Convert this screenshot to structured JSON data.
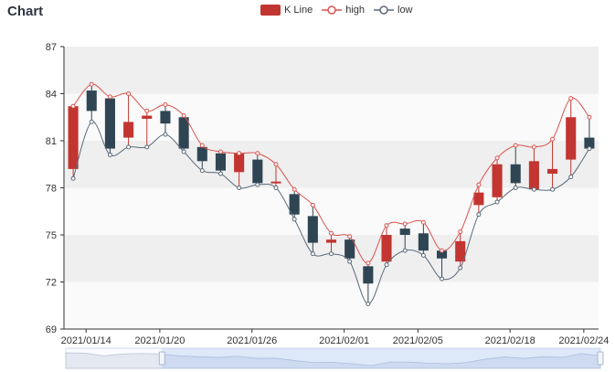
{
  "chart_data": {
    "type": "candlestick",
    "title": "Chart",
    "legend": {
      "placement": "top-center",
      "items": [
        {
          "name": "K Line",
          "color": "#c23531",
          "icon": "rect"
        },
        {
          "name": "high",
          "color": "#d9534f",
          "icon": "circle-line"
        },
        {
          "name": "low",
          "color": "#5b6a7a",
          "icon": "circle-line"
        }
      ]
    },
    "ylim": [
      69,
      87
    ],
    "y_ticks": [
      "69",
      "72",
      "75",
      "78",
      "81",
      "84",
      "87"
    ],
    "x_tick_labels": [
      "2021/01/14",
      "2021/01/20",
      "2021/01/26",
      "2021/02/01",
      "2021/02/05",
      "2021/02/18",
      "2021/02/24"
    ],
    "grid": "horizontal-bands",
    "colors": {
      "up": "#c23531",
      "down": "#2f4554",
      "high_line": "#d9534f",
      "low_line": "#5b6a7a",
      "band": "#efefef"
    },
    "candles": [
      {
        "open": 79.2,
        "close": 83.2,
        "low": 78.6,
        "high": 83.2
      },
      {
        "open": 84.2,
        "close": 82.9,
        "low": 82.2,
        "high": 84.6
      },
      {
        "open": 83.7,
        "close": 80.5,
        "low": 80.1,
        "high": 83.8
      },
      {
        "open": 81.2,
        "close": 82.2,
        "low": 80.6,
        "high": 84.0
      },
      {
        "open": 82.4,
        "close": 82.6,
        "low": 80.6,
        "high": 82.9
      },
      {
        "open": 82.9,
        "close": 82.1,
        "low": 81.4,
        "high": 83.3
      },
      {
        "open": 82.5,
        "close": 80.5,
        "low": 80.3,
        "high": 82.6
      },
      {
        "open": 80.6,
        "close": 79.7,
        "low": 79.1,
        "high": 80.7
      },
      {
        "open": 80.2,
        "close": 79.1,
        "low": 78.9,
        "high": 80.3
      },
      {
        "open": 79.0,
        "close": 80.2,
        "low": 78.0,
        "high": 80.2
      },
      {
        "open": 79.8,
        "close": 78.3,
        "low": 78.2,
        "high": 80.2
      },
      {
        "open": 78.3,
        "close": 78.4,
        "low": 78.0,
        "high": 79.5
      },
      {
        "open": 77.6,
        "close": 76.3,
        "low": 76.0,
        "high": 77.9
      },
      {
        "open": 76.2,
        "close": 74.5,
        "low": 73.8,
        "high": 76.9
      },
      {
        "open": 74.5,
        "close": 74.7,
        "low": 73.8,
        "high": 75.1
      },
      {
        "open": 74.7,
        "close": 73.5,
        "low": 73.3,
        "high": 74.9
      },
      {
        "open": 73.0,
        "close": 71.9,
        "low": 70.6,
        "high": 73.2
      },
      {
        "open": 73.3,
        "close": 75.0,
        "low": 73.1,
        "high": 75.6
      },
      {
        "open": 75.4,
        "close": 75.0,
        "low": 74.0,
        "high": 75.7
      },
      {
        "open": 75.1,
        "close": 74.0,
        "low": 73.7,
        "high": 75.8
      },
      {
        "open": 74.0,
        "close": 73.5,
        "low": 72.2,
        "high": 74.0
      },
      {
        "open": 73.3,
        "close": 74.6,
        "low": 72.9,
        "high": 75.2
      },
      {
        "open": 76.9,
        "close": 77.7,
        "low": 76.3,
        "high": 78.2
      },
      {
        "open": 77.4,
        "close": 79.5,
        "low": 77.1,
        "high": 79.9
      },
      {
        "open": 79.5,
        "close": 78.3,
        "low": 78.0,
        "high": 80.7
      },
      {
        "open": 77.9,
        "close": 79.7,
        "low": 77.9,
        "high": 80.6
      },
      {
        "open": 78.9,
        "close": 79.2,
        "low": 77.9,
        "high": 81.1
      },
      {
        "open": 79.8,
        "close": 82.5,
        "low": 78.7,
        "high": 83.7
      },
      {
        "open": 81.2,
        "close": 80.5,
        "low": 80.5,
        "high": 82.5
      }
    ],
    "datazoom": {
      "start_fraction": 0.18,
      "end_fraction": 1.0
    }
  }
}
